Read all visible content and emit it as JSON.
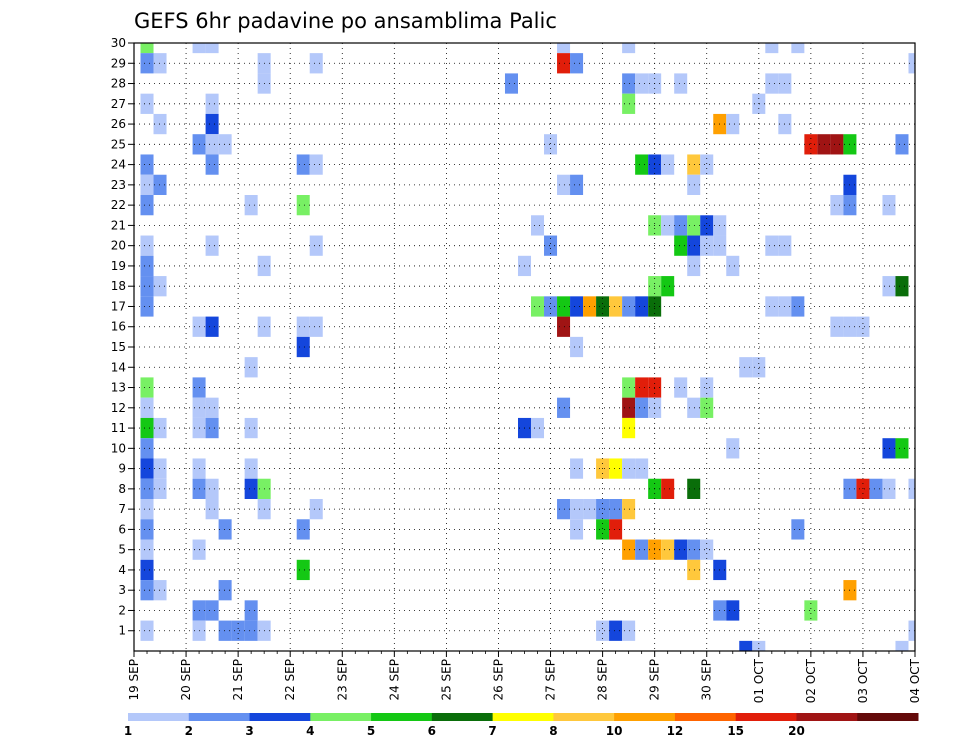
{
  "chart_data": {
    "type": "heatmap",
    "title": "GEFS 6hr padavine po ansamblima Palic",
    "xlabel": "",
    "ylabel": "",
    "x_ticks": [
      "19 SEP",
      "20 SEP",
      "21 SEP",
      "22 SEP",
      "23 SEP",
      "24 SEP",
      "25 SEP",
      "26 SEP",
      "27 SEP",
      "28 SEP",
      "29 SEP",
      "30 SEP",
      "01 OCT",
      "02 OCT",
      "03 OCT",
      "04 OCT"
    ],
    "y_ticks": [
      1,
      2,
      3,
      4,
      5,
      6,
      7,
      8,
      9,
      10,
      11,
      12,
      13,
      14,
      15,
      16,
      17,
      18,
      19,
      20,
      21,
      22,
      23,
      24,
      25,
      26,
      27,
      28,
      29,
      30
    ],
    "x_range": [
      0,
      60
    ],
    "y_range": [
      0,
      30
    ],
    "grid": true,
    "colorbar": {
      "labels": [
        "1",
        "2",
        "3",
        "4",
        "5",
        "6",
        "7",
        "8",
        "10",
        "12",
        "15",
        "20"
      ],
      "colors": [
        "#b4c8fa",
        "#6490f0",
        "#1446dc",
        "#78f064",
        "#14c814",
        "#0a6e0a",
        "#ffff00",
        "#ffc83c",
        "#ffa000",
        "#ff6400",
        "#e11e0a",
        "#a01414",
        "#640a0a"
      ]
    },
    "cells_note": "each cell = [time step index (6h steps from 19 SEP 00z), ensemble member, color class index]",
    "cells": [
      [
        1,
        30,
        4
      ],
      [
        1,
        29,
        2
      ],
      [
        1,
        27,
        1
      ],
      [
        1,
        24,
        2
      ],
      [
        1,
        23,
        1
      ],
      [
        1,
        22,
        2
      ],
      [
        1,
        20,
        1
      ],
      [
        1,
        19,
        2
      ],
      [
        1,
        18,
        2
      ],
      [
        1,
        17,
        2
      ],
      [
        1,
        13,
        4
      ],
      [
        1,
        12,
        1
      ],
      [
        1,
        11,
        5
      ],
      [
        1,
        10,
        2
      ],
      [
        1,
        9,
        3
      ],
      [
        1,
        8,
        2
      ],
      [
        1,
        7,
        1
      ],
      [
        1,
        6,
        2
      ],
      [
        1,
        5,
        1
      ],
      [
        1,
        4,
        3
      ],
      [
        1,
        3,
        2
      ],
      [
        1,
        1,
        1
      ],
      [
        2,
        29,
        1
      ],
      [
        2,
        26,
        1
      ],
      [
        2,
        23,
        2
      ],
      [
        2,
        18,
        1
      ],
      [
        2,
        11,
        1
      ],
      [
        2,
        9,
        1
      ],
      [
        2,
        8,
        1
      ],
      [
        2,
        3,
        1
      ],
      [
        5,
        30,
        1
      ],
      [
        5,
        25,
        2
      ],
      [
        5,
        16,
        1
      ],
      [
        5,
        13,
        2
      ],
      [
        5,
        12,
        1
      ],
      [
        5,
        11,
        1
      ],
      [
        5,
        9,
        1
      ],
      [
        5,
        8,
        2
      ],
      [
        5,
        5,
        1
      ],
      [
        5,
        2,
        2
      ],
      [
        5,
        1,
        1
      ],
      [
        6,
        30,
        1
      ],
      [
        6,
        27,
        1
      ],
      [
        6,
        26,
        3
      ],
      [
        6,
        25,
        1
      ],
      [
        6,
        24,
        2
      ],
      [
        6,
        20,
        1
      ],
      [
        6,
        16,
        3
      ],
      [
        6,
        12,
        1
      ],
      [
        6,
        11,
        2
      ],
      [
        6,
        8,
        1
      ],
      [
        6,
        7,
        1
      ],
      [
        6,
        2,
        2
      ],
      [
        7,
        25,
        1
      ],
      [
        7,
        6,
        2
      ],
      [
        7,
        3,
        2
      ],
      [
        7,
        1,
        2
      ],
      [
        8,
        1,
        2
      ],
      [
        9,
        22,
        1
      ],
      [
        9,
        14,
        1
      ],
      [
        9,
        11,
        1
      ],
      [
        9,
        9,
        1
      ],
      [
        9,
        8,
        3
      ],
      [
        9,
        2,
        2
      ],
      [
        9,
        1,
        2
      ],
      [
        10,
        29,
        1
      ],
      [
        10,
        28,
        1
      ],
      [
        10,
        19,
        1
      ],
      [
        10,
        16,
        1
      ],
      [
        10,
        8,
        4
      ],
      [
        10,
        7,
        1
      ],
      [
        10,
        1,
        1
      ],
      [
        13,
        24,
        2
      ],
      [
        13,
        22,
        4
      ],
      [
        13,
        16,
        1
      ],
      [
        13,
        15,
        3
      ],
      [
        13,
        6,
        2
      ],
      [
        13,
        4,
        5
      ],
      [
        14,
        29,
        1
      ],
      [
        14,
        24,
        1
      ],
      [
        14,
        20,
        1
      ],
      [
        14,
        16,
        1
      ],
      [
        14,
        7,
        1
      ],
      [
        29,
        28,
        2
      ],
      [
        30,
        19,
        1
      ],
      [
        30,
        11,
        3
      ],
      [
        31,
        21,
        1
      ],
      [
        31,
        17,
        4
      ],
      [
        31,
        11,
        1
      ],
      [
        32,
        25,
        1
      ],
      [
        32,
        20,
        2
      ],
      [
        32,
        17,
        2
      ],
      [
        33,
        30,
        1
      ],
      [
        33,
        29,
        11
      ],
      [
        33,
        23,
        1
      ],
      [
        33,
        17,
        5
      ],
      [
        33,
        16,
        12
      ],
      [
        33,
        12,
        2
      ],
      [
        33,
        7,
        2
      ],
      [
        34,
        29,
        2
      ],
      [
        34,
        23,
        2
      ],
      [
        34,
        17,
        3
      ],
      [
        34,
        15,
        1
      ],
      [
        34,
        9,
        1
      ],
      [
        34,
        7,
        1
      ],
      [
        34,
        6,
        1
      ],
      [
        35,
        17,
        9
      ],
      [
        35,
        7,
        1
      ],
      [
        36,
        17,
        6
      ],
      [
        36,
        9,
        8
      ],
      [
        36,
        7,
        2
      ],
      [
        36,
        6,
        5
      ],
      [
        36,
        1,
        1
      ],
      [
        37,
        17,
        8
      ],
      [
        37,
        9,
        7
      ],
      [
        37,
        7,
        2
      ],
      [
        37,
        6,
        11
      ],
      [
        37,
        1,
        3
      ],
      [
        38,
        30,
        1
      ],
      [
        38,
        28,
        2
      ],
      [
        38,
        27,
        4
      ],
      [
        38,
        17,
        2
      ],
      [
        38,
        13,
        4
      ],
      [
        38,
        12,
        12
      ],
      [
        38,
        11,
        7
      ],
      [
        38,
        9,
        1
      ],
      [
        38,
        7,
        8
      ],
      [
        38,
        5,
        9
      ],
      [
        38,
        1,
        1
      ],
      [
        39,
        28,
        1
      ],
      [
        39,
        24,
        5
      ],
      [
        39,
        17,
        3
      ],
      [
        39,
        13,
        11
      ],
      [
        39,
        12,
        2
      ],
      [
        39,
        9,
        1
      ],
      [
        39,
        5,
        2
      ],
      [
        40,
        28,
        1
      ],
      [
        40,
        24,
        3
      ],
      [
        40,
        21,
        4
      ],
      [
        40,
        18,
        4
      ],
      [
        40,
        17,
        6
      ],
      [
        40,
        13,
        11
      ],
      [
        40,
        12,
        1
      ],
      [
        40,
        8,
        5
      ],
      [
        40,
        5,
        9
      ],
      [
        41,
        24,
        1
      ],
      [
        41,
        21,
        1
      ],
      [
        41,
        18,
        5
      ],
      [
        41,
        8,
        11
      ],
      [
        41,
        5,
        8
      ],
      [
        42,
        28,
        1
      ],
      [
        42,
        21,
        2
      ],
      [
        42,
        20,
        5
      ],
      [
        42,
        13,
        1
      ],
      [
        42,
        5,
        3
      ],
      [
        43,
        24,
        8
      ],
      [
        43,
        23,
        1
      ],
      [
        43,
        21,
        4
      ],
      [
        43,
        20,
        3
      ],
      [
        43,
        19,
        1
      ],
      [
        43,
        12,
        1
      ],
      [
        43,
        8,
        6
      ],
      [
        43,
        5,
        2
      ],
      [
        43,
        4,
        8
      ],
      [
        44,
        24,
        1
      ],
      [
        44,
        20,
        1
      ],
      [
        44,
        21,
        3
      ],
      [
        44,
        13,
        1
      ],
      [
        44,
        12,
        4
      ],
      [
        44,
        5,
        1
      ],
      [
        45,
        26,
        9
      ],
      [
        45,
        21,
        1
      ],
      [
        45,
        20,
        1
      ],
      [
        45,
        4,
        3
      ],
      [
        45,
        2,
        2
      ],
      [
        46,
        26,
        1
      ],
      [
        46,
        19,
        1
      ],
      [
        46,
        10,
        1
      ],
      [
        46,
        2,
        3
      ],
      [
        47,
        14,
        1
      ],
      [
        47,
        0,
        3
      ],
      [
        48,
        27,
        1
      ],
      [
        48,
        14,
        1
      ],
      [
        48,
        0,
        1
      ],
      [
        49,
        30,
        1
      ],
      [
        49,
        28,
        1
      ],
      [
        49,
        20,
        1
      ],
      [
        49,
        17,
        1
      ],
      [
        50,
        28,
        1
      ],
      [
        50,
        26,
        1
      ],
      [
        50,
        20,
        1
      ],
      [
        50,
        17,
        1
      ],
      [
        51,
        30,
        1
      ],
      [
        51,
        17,
        2
      ],
      [
        51,
        6,
        2
      ],
      [
        52,
        25,
        11
      ],
      [
        52,
        2,
        4
      ],
      [
        53,
        25,
        12
      ],
      [
        54,
        25,
        12
      ],
      [
        54,
        22,
        1
      ],
      [
        54,
        16,
        1
      ],
      [
        55,
        25,
        5
      ],
      [
        55,
        23,
        3
      ],
      [
        55,
        22,
        2
      ],
      [
        55,
        16,
        1
      ],
      [
        55,
        8,
        2
      ],
      [
        55,
        3,
        9
      ],
      [
        56,
        16,
        1
      ],
      [
        56,
        8,
        11
      ],
      [
        57,
        8,
        2
      ],
      [
        58,
        22,
        1
      ],
      [
        58,
        18,
        1
      ],
      [
        58,
        10,
        3
      ],
      [
        58,
        8,
        1
      ],
      [
        59,
        25,
        2
      ],
      [
        59,
        18,
        6
      ],
      [
        59,
        10,
        5
      ],
      [
        59,
        0,
        1
      ],
      [
        60,
        29,
        1
      ],
      [
        60,
        8,
        1
      ],
      [
        60,
        1,
        1
      ]
    ]
  }
}
